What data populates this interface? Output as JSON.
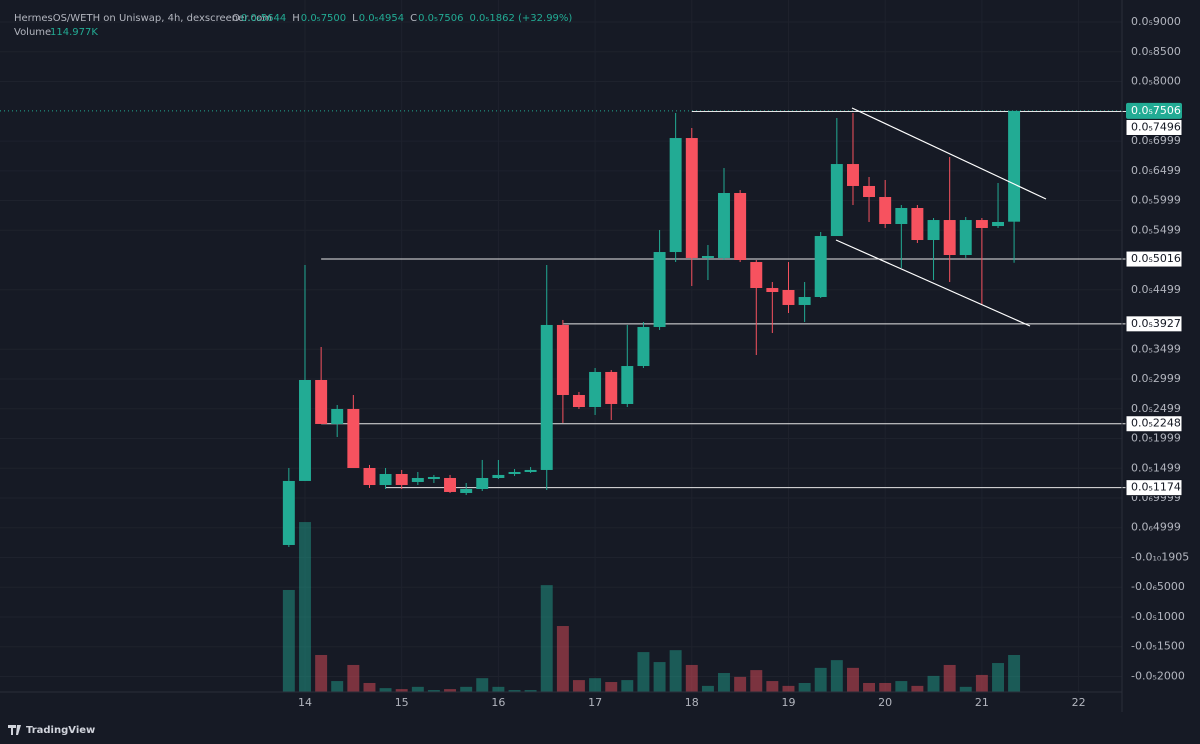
{
  "header": {
    "symbol": "HermesOS/WETH on Uniswap, 4h, dexscreener.com",
    "ohlc": [
      {
        "key": "O",
        "value": "0.0₅5644"
      },
      {
        "key": "H",
        "value": "0.0₅7500"
      },
      {
        "key": "L",
        "value": "0.0₅4954"
      },
      {
        "key": "C",
        "value": "0.0₅7506"
      }
    ],
    "change": "0.0₅1862 (+32.99%)",
    "volume_label": "Volume",
    "volume_value": "114.977K"
  },
  "chart_data": {
    "type": "candlestick",
    "x": [
      13.833,
      14,
      14.167,
      14.333,
      14.5,
      14.667,
      14.833,
      15,
      15.167,
      15.333,
      15.5,
      15.667,
      15.833,
      16,
      16.167,
      16.333,
      16.5,
      16.667,
      16.833,
      17,
      17.167,
      17.333,
      17.5,
      17.667,
      17.833,
      18,
      18.167,
      18.333,
      18.5,
      18.667,
      18.833,
      19,
      19.167,
      19.333,
      19.5,
      19.667,
      19.833,
      20,
      20.167,
      20.333,
      20.5,
      20.667,
      20.833,
      21,
      21.167,
      21.333
    ],
    "open": [
      2.1e-07,
      1.286e-06,
      2.983e-06,
      2.244e-06,
      2.496e-06,
      1.504e-06,
      1.218e-06,
      1.403e-06,
      1.269e-06,
      1.319e-06,
      1.336e-06,
      1.084e-06,
      1.151e-06,
      1.336e-06,
      1.403e-06,
      1.437e-06,
      1.471e-06,
      3.908e-06,
      2.731e-06,
      2.529e-06,
      3.118e-06,
      2.58e-06,
      3.218e-06,
      3.874e-06,
      5.134e-06,
      7.05e-06,
      5.034e-06,
      5.034e-06,
      6.126e-06,
      4.966e-06,
      4.529e-06,
      4.496e-06,
      4.244e-06,
      4.378e-06,
      5.403e-06,
      6.613e-06,
      6.244e-06,
      6.059e-06,
      5.605e-06,
      5.874e-06,
      5.336e-06,
      5.672e-06,
      5.084e-06,
      5.672e-06,
      5.571e-06,
      5.644e-06
    ],
    "high": [
      1.504e-06,
      4.916e-06,
      3.538e-06,
      2.563e-06,
      2.731e-06,
      1.555e-06,
      1.504e-06,
      1.471e-06,
      1.437e-06,
      1.387e-06,
      1.387e-06,
      1.252e-06,
      1.639e-06,
      1.639e-06,
      1.487e-06,
      1.52e-06,
      4.916e-06,
      3.992e-06,
      2.782e-06,
      3.185e-06,
      3.151e-06,
      3.908e-06,
      3.958e-06,
      5.504e-06,
      7.471e-06,
      7.218e-06,
      5.252e-06,
      6.546e-06,
      6.176e-06,
      5e-06,
      4.63e-06,
      4.966e-06,
      4.63e-06,
      5.471e-06,
      7.387e-06,
      7.471e-06,
      6.395e-06,
      6.345e-06,
      5.924e-06,
      5.924e-06,
      5.706e-06,
      6.731e-06,
      5.723e-06,
      5.706e-06,
      6.294e-06,
      7.5e-06
    ],
    "low": [
      1.76e-07,
      1.286e-06,
      2.244e-06,
      2.025e-06,
      1.504e-06,
      1.168e-06,
      1.151e-06,
      1.151e-06,
      1.218e-06,
      1.252e-06,
      1.084e-06,
      1.05e-06,
      1.118e-06,
      1.319e-06,
      1.37e-06,
      1.42e-06,
      1.134e-06,
      2.261e-06,
      2.496e-06,
      2.395e-06,
      2.311e-06,
      2.529e-06,
      3.185e-06,
      3.824e-06,
      4.966e-06,
      4.563e-06,
      4.664e-06,
      5e-06,
      4.966e-06,
      3.403e-06,
      3.773e-06,
      4.109e-06,
      3.958e-06,
      4.361e-06,
      5.403e-06,
      5.924e-06,
      5.639e-06,
      5.538e-06,
      4.866e-06,
      5.286e-06,
      4.664e-06,
      4.63e-06,
      5.034e-06,
      4.244e-06,
      5.538e-06,
      4.954e-06
    ],
    "close": [
      1.286e-06,
      2.983e-06,
      2.244e-06,
      2.496e-06,
      1.504e-06,
      1.218e-06,
      1.403e-06,
      1.218e-06,
      1.336e-06,
      1.353e-06,
      1.101e-06,
      1.151e-06,
      1.336e-06,
      1.387e-06,
      1.437e-06,
      1.471e-06,
      3.908e-06,
      2.731e-06,
      2.529e-06,
      3.118e-06,
      2.58e-06,
      3.218e-06,
      3.874e-06,
      5.134e-06,
      7.05e-06,
      5.034e-06,
      5.067e-06,
      6.126e-06,
      5e-06,
      4.529e-06,
      4.462e-06,
      4.244e-06,
      4.378e-06,
      5.403e-06,
      6.613e-06,
      6.244e-06,
      6.059e-06,
      5.605e-06,
      5.874e-06,
      5.336e-06,
      5.672e-06,
      5.084e-06,
      5.672e-06,
      5.538e-06,
      5.639e-06,
      7.506e-06
    ],
    "volume": [
      317,
      528,
      115,
      34,
      84,
      28,
      12,
      9,
      16,
      6,
      9,
      16,
      43,
      16,
      6,
      6,
      332,
      205,
      37,
      43,
      31,
      37,
      124,
      93,
      130,
      84,
      19,
      59,
      47,
      68,
      34,
      19,
      28,
      75,
      99,
      75,
      28,
      28,
      34,
      19,
      50,
      84,
      16,
      53,
      90,
      114.977
    ],
    "up_color": "#22ab94",
    "down_color": "#f7525f",
    "xlim": [
      10.846,
      22.449
    ],
    "xticks": [
      14,
      15,
      16,
      17,
      18,
      19,
      20,
      21,
      22
    ],
    "ylim": [
      -2.261e-06,
      9.37e-06
    ],
    "vlim": [
      0,
      2150
    ],
    "yticks": [
      {
        "value": 9e-06,
        "label": "0.0₅9000"
      },
      {
        "value": 8.5e-06,
        "label": "0.0₅8500"
      },
      {
        "value": 8e-06,
        "label": "0.0₅8000"
      },
      {
        "value": 6.999e-06,
        "label": "0.0₅6999"
      },
      {
        "value": 6.499e-06,
        "label": "0.0₅6499"
      },
      {
        "value": 5.999e-06,
        "label": "0.0₅5999"
      },
      {
        "value": 5.499e-06,
        "label": "0.0₅5499"
      },
      {
        "value": 4.499e-06,
        "label": "0.0₅4499"
      },
      {
        "value": 3.499e-06,
        "label": "0.0₅3499"
      },
      {
        "value": 2.999e-06,
        "label": "0.0₅2999"
      },
      {
        "value": 2.499e-06,
        "label": "0.0₅2499"
      },
      {
        "value": 1.999e-06,
        "label": "0.0₅1999"
      },
      {
        "value": 1.499e-06,
        "label": "0.0₅1499"
      },
      {
        "value": 9.999e-07,
        "label": "0.0₆9999"
      },
      {
        "value": 4.999e-07,
        "label": "0.0₆4999"
      },
      {
        "value": -1.905e-11,
        "label": "-0.0₁₀1905"
      },
      {
        "value": -5e-07,
        "label": "-0.0₆5000"
      },
      {
        "value": -1e-06,
        "label": "-0.0₅1000"
      },
      {
        "value": -1.5e-06,
        "label": "-0.0₅1500"
      },
      {
        "value": -2e-06,
        "label": "-0.0₅2000"
      }
    ],
    "price_lines": [
      {
        "value": 7.496e-06,
        "label": "0.0₅7496",
        "from": 18
      },
      {
        "value": 5.016e-06,
        "label": "0.0₅5016",
        "from": 14.167
      },
      {
        "value": 3.927e-06,
        "label": "0.0₅3927",
        "from": 16.667
      },
      {
        "value": 2.248e-06,
        "label": "0.0₅2248",
        "from": 14.167
      },
      {
        "value": 1.174e-06,
        "label": "0.0₅1174",
        "from": 14.833
      }
    ],
    "last_price": {
      "value": 7.506e-06,
      "label": "0.0₅7506"
    },
    "grid": true
  },
  "footer": {
    "brand": "TradingView"
  }
}
